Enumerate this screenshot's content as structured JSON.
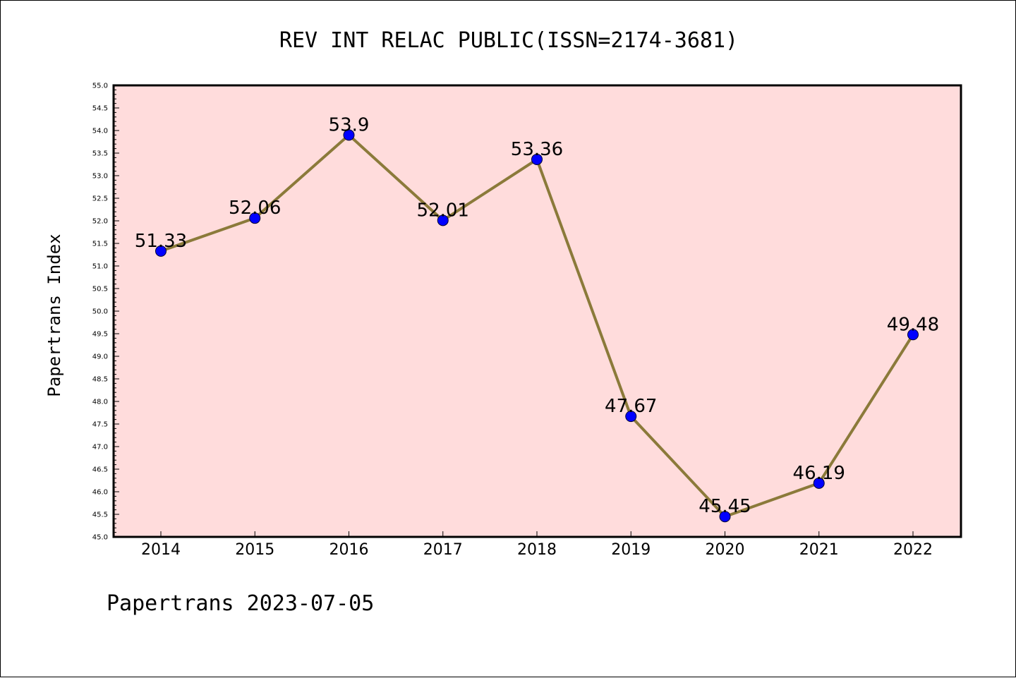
{
  "chart_data": {
    "type": "line",
    "title": "REV INT RELAC PUBLIC(ISSN=2174-3681)",
    "xlabel": "",
    "ylabel": "Papertrans Index",
    "categories": [
      "2014",
      "2015",
      "2016",
      "2017",
      "2018",
      "2019",
      "2020",
      "2021",
      "2022"
    ],
    "values": [
      51.33,
      52.06,
      53.9,
      52.01,
      53.36,
      47.67,
      45.45,
      46.19,
      49.48
    ],
    "data_labels": [
      "51.33",
      "52.06",
      "53.9",
      "52.01",
      "53.36",
      "47.67",
      "45.45",
      "46.19",
      "49.48"
    ],
    "ylim": [
      45.0,
      55.0
    ],
    "yticks": [
      "45.0",
      "45.5",
      "46.0",
      "46.5",
      "47.0",
      "47.5",
      "48.0",
      "48.5",
      "49.0",
      "49.5",
      "50.0",
      "50.5",
      "51.0",
      "51.5",
      "52.0",
      "52.5",
      "53.0",
      "53.5",
      "54.0",
      "54.5",
      "55.0"
    ],
    "grid": false,
    "colors": {
      "plot_background": "#ffdcdc",
      "line": "#8b7a3a",
      "marker": "#0000ff"
    }
  },
  "footer": "Papertrans 2023-07-05"
}
